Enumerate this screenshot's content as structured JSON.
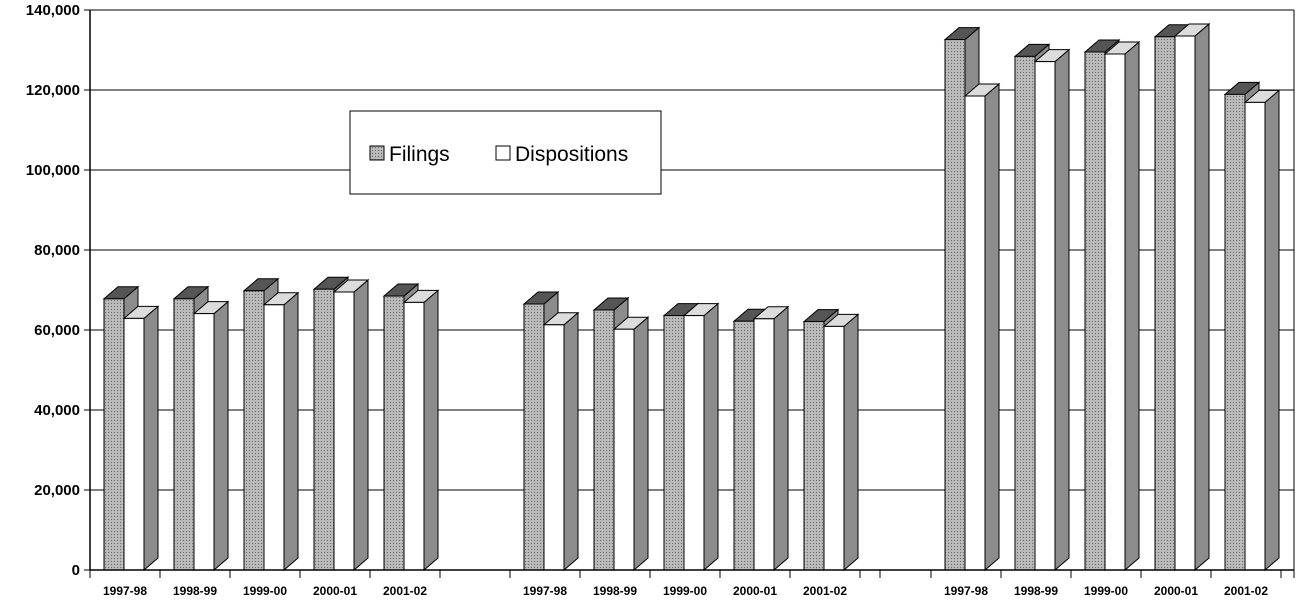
{
  "chart_data": {
    "type": "bar",
    "groups": [
      {
        "categories": [
          "1997-98",
          "1998-99",
          "1999-00",
          "2000-01",
          "2001-02"
        ],
        "series": [
          {
            "name": "Filings",
            "values": [
              67800,
              67800,
              69800,
              70200,
              68500
            ]
          },
          {
            "name": "Dispositions",
            "values": [
              62900,
              64100,
              66300,
              69500,
              66900
            ]
          }
        ]
      },
      {
        "categories": [
          "1997-98",
          "1998-99",
          "1999-00",
          "2000-01",
          "2001-02"
        ],
        "series": [
          {
            "name": "Filings",
            "values": [
              66500,
              65000,
              63600,
              62200,
              62100
            ]
          },
          {
            "name": "Dispositions",
            "values": [
              61300,
              60200,
              63600,
              62800,
              60900
            ]
          }
        ]
      },
      {
        "categories": [
          "1997-98",
          "1998-99",
          "1999-00",
          "2000-01",
          "2001-02"
        ],
        "series": [
          {
            "name": "Filings",
            "values": [
              132600,
              128400,
              129500,
              133300,
              118900
            ]
          },
          {
            "name": "Dispositions",
            "values": [
              118500,
              127100,
              129000,
              133500,
              116900
            ]
          }
        ]
      }
    ],
    "legend": [
      {
        "name": "Filings"
      },
      {
        "name": "Dispositions"
      }
    ],
    "ylim": [
      0,
      140000
    ],
    "yticks": [
      "0",
      "20,000",
      "40,000",
      "60,000",
      "80,000",
      "100,000",
      "120,000",
      "140,000"
    ],
    "grid": true,
    "legend_position": "upper-left",
    "colors": {
      "filings": "#a8a8a8",
      "filings_dark": "#555555",
      "dispositions": "#ffffff",
      "side": "#8c8c8c",
      "grid": "#000000"
    }
  }
}
